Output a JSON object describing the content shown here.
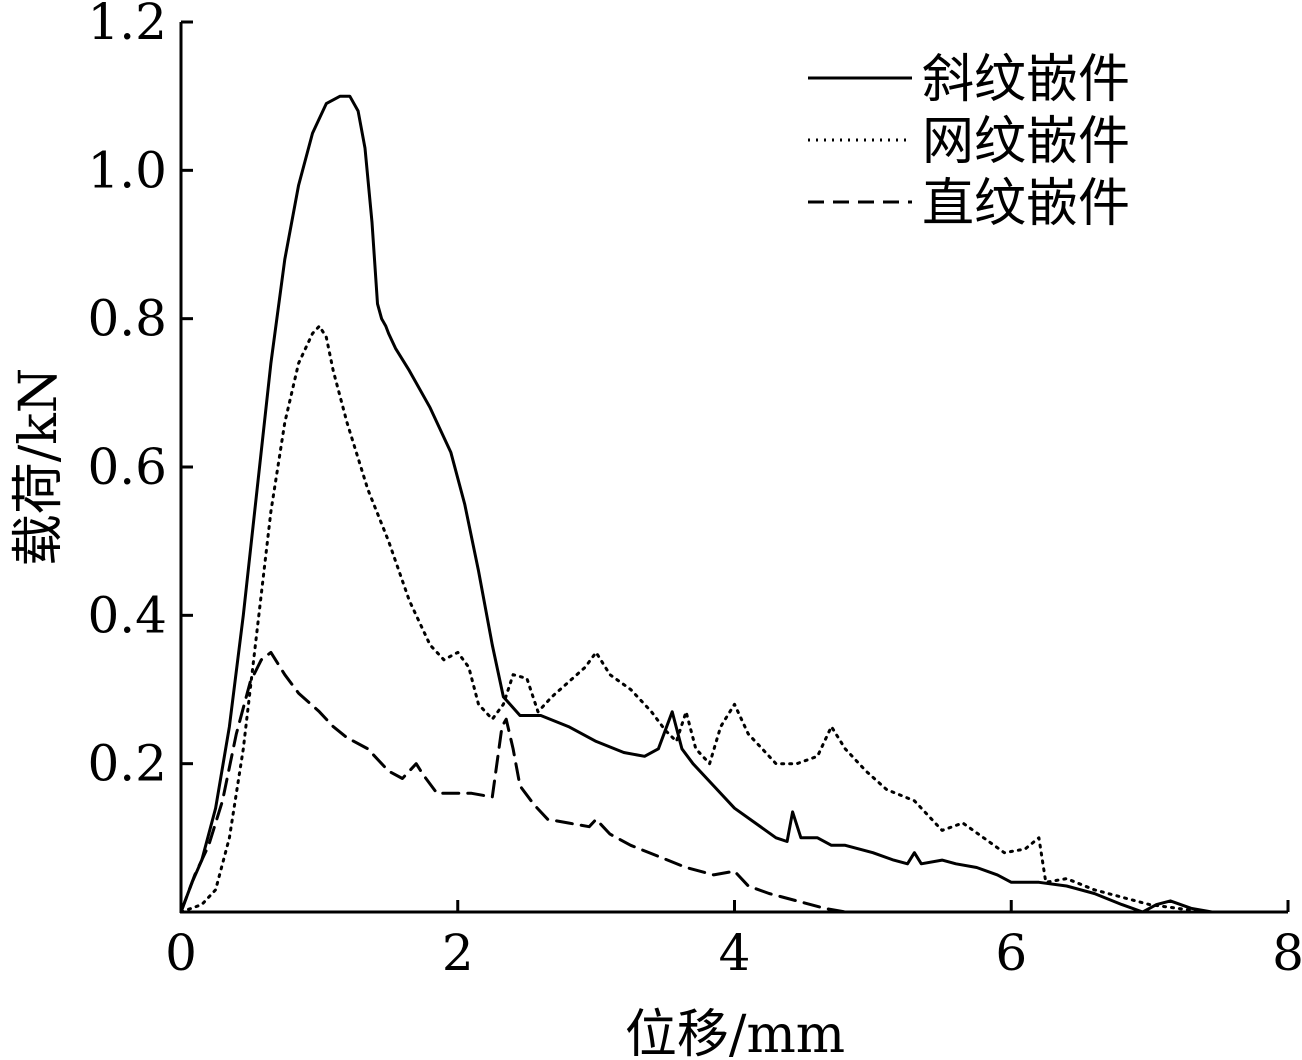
{
  "chart_data": {
    "type": "line",
    "title": "",
    "xlabel": "位移/mm",
    "ylabel": "载荷/kN",
    "xlim": [
      0,
      8
    ],
    "ylim": [
      0,
      1.2
    ],
    "xticks": [
      0,
      2,
      4,
      6,
      8
    ],
    "xtick_labels": [
      "0",
      "2",
      "4",
      "6",
      "8"
    ],
    "yticks": [
      0.2,
      0.4,
      0.6,
      0.8,
      1.0,
      1.2
    ],
    "ytick_labels": [
      "0.2",
      "0.4",
      "0.6",
      "0.8",
      "1.0",
      "1.2"
    ],
    "grid": false,
    "legend_position": "top-right",
    "series": [
      {
        "name": "斜纹嵌件",
        "style": "solid",
        "color": "#000000",
        "x": [
          0.0,
          0.08,
          0.15,
          0.25,
          0.35,
          0.45,
          0.55,
          0.65,
          0.75,
          0.85,
          0.95,
          1.05,
          1.15,
          1.22,
          1.28,
          1.33,
          1.38,
          1.42,
          1.45,
          1.48,
          1.5,
          1.55,
          1.65,
          1.8,
          1.95,
          2.05,
          2.15,
          2.25,
          2.33,
          2.45,
          2.6,
          2.8,
          3.0,
          3.2,
          3.35,
          3.45,
          3.5,
          3.55,
          3.62,
          3.7,
          3.85,
          4.0,
          4.15,
          4.3,
          4.38,
          4.42,
          4.48,
          4.6,
          4.7,
          4.8,
          5.0,
          5.15,
          5.25,
          5.3,
          5.35,
          5.5,
          5.6,
          5.75,
          5.9,
          6.0,
          6.2,
          6.4,
          6.6,
          6.8,
          6.95,
          7.05,
          7.15,
          7.3,
          7.45
        ],
        "y": [
          0.0,
          0.04,
          0.07,
          0.14,
          0.25,
          0.4,
          0.57,
          0.74,
          0.88,
          0.98,
          1.05,
          1.09,
          1.1,
          1.1,
          1.08,
          1.03,
          0.93,
          0.82,
          0.8,
          0.79,
          0.78,
          0.76,
          0.73,
          0.68,
          0.62,
          0.55,
          0.46,
          0.36,
          0.29,
          0.265,
          0.265,
          0.25,
          0.23,
          0.215,
          0.21,
          0.22,
          0.245,
          0.27,
          0.22,
          0.2,
          0.17,
          0.14,
          0.12,
          0.1,
          0.095,
          0.135,
          0.1,
          0.1,
          0.09,
          0.09,
          0.08,
          0.07,
          0.065,
          0.08,
          0.065,
          0.07,
          0.065,
          0.06,
          0.05,
          0.04,
          0.04,
          0.035,
          0.025,
          0.01,
          0.0,
          0.01,
          0.015,
          0.005,
          0.0
        ]
      },
      {
        "name": "网纹嵌件",
        "style": "dotted",
        "color": "#000000",
        "x": [
          0.0,
          0.15,
          0.25,
          0.35,
          0.45,
          0.55,
          0.65,
          0.75,
          0.85,
          0.95,
          1.0,
          1.05,
          1.1,
          1.2,
          1.35,
          1.5,
          1.65,
          1.8,
          1.9,
          2.0,
          2.08,
          2.15,
          2.25,
          2.33,
          2.4,
          2.5,
          2.58,
          2.68,
          2.8,
          2.92,
          3.0,
          3.1,
          3.25,
          3.4,
          3.5,
          3.58,
          3.65,
          3.72,
          3.82,
          3.9,
          4.0,
          4.1,
          4.2,
          4.3,
          4.45,
          4.6,
          4.7,
          4.8,
          4.95,
          5.1,
          5.3,
          5.5,
          5.65,
          5.8,
          5.95,
          6.1,
          6.2,
          6.25,
          6.4,
          6.6,
          6.8,
          7.0,
          7.2,
          7.4
        ],
        "y": [
          0.0,
          0.01,
          0.03,
          0.1,
          0.22,
          0.38,
          0.54,
          0.66,
          0.74,
          0.78,
          0.79,
          0.775,
          0.73,
          0.66,
          0.57,
          0.5,
          0.42,
          0.36,
          0.34,
          0.35,
          0.33,
          0.28,
          0.26,
          0.28,
          0.32,
          0.315,
          0.27,
          0.29,
          0.31,
          0.33,
          0.35,
          0.32,
          0.3,
          0.27,
          0.245,
          0.23,
          0.27,
          0.22,
          0.2,
          0.25,
          0.28,
          0.24,
          0.22,
          0.2,
          0.2,
          0.21,
          0.25,
          0.22,
          0.19,
          0.165,
          0.15,
          0.11,
          0.12,
          0.1,
          0.08,
          0.085,
          0.1,
          0.04,
          0.045,
          0.03,
          0.02,
          0.01,
          0.005,
          0.0
        ]
      },
      {
        "name": "直纹嵌件",
        "style": "dashed",
        "color": "#000000",
        "x": [
          0.0,
          0.1,
          0.2,
          0.3,
          0.4,
          0.5,
          0.58,
          0.65,
          0.75,
          0.85,
          1.0,
          1.1,
          1.2,
          1.35,
          1.5,
          1.6,
          1.7,
          1.75,
          1.85,
          1.95,
          2.1,
          2.25,
          2.32,
          2.35,
          2.4,
          2.45,
          2.55,
          2.65,
          2.8,
          2.95,
          3.0,
          3.1,
          3.25,
          3.45,
          3.65,
          3.85,
          4.0,
          4.1,
          4.25,
          4.45,
          4.65,
          4.8,
          5.0
        ],
        "y": [
          0.0,
          0.05,
          0.09,
          0.15,
          0.24,
          0.31,
          0.34,
          0.35,
          0.32,
          0.295,
          0.27,
          0.25,
          0.235,
          0.22,
          0.19,
          0.18,
          0.2,
          0.185,
          0.16,
          0.16,
          0.16,
          0.155,
          0.25,
          0.26,
          0.22,
          0.17,
          0.145,
          0.125,
          0.12,
          0.115,
          0.125,
          0.105,
          0.09,
          0.075,
          0.06,
          0.05,
          0.055,
          0.035,
          0.025,
          0.015,
          0.005,
          0.0,
          0.0
        ]
      }
    ]
  }
}
